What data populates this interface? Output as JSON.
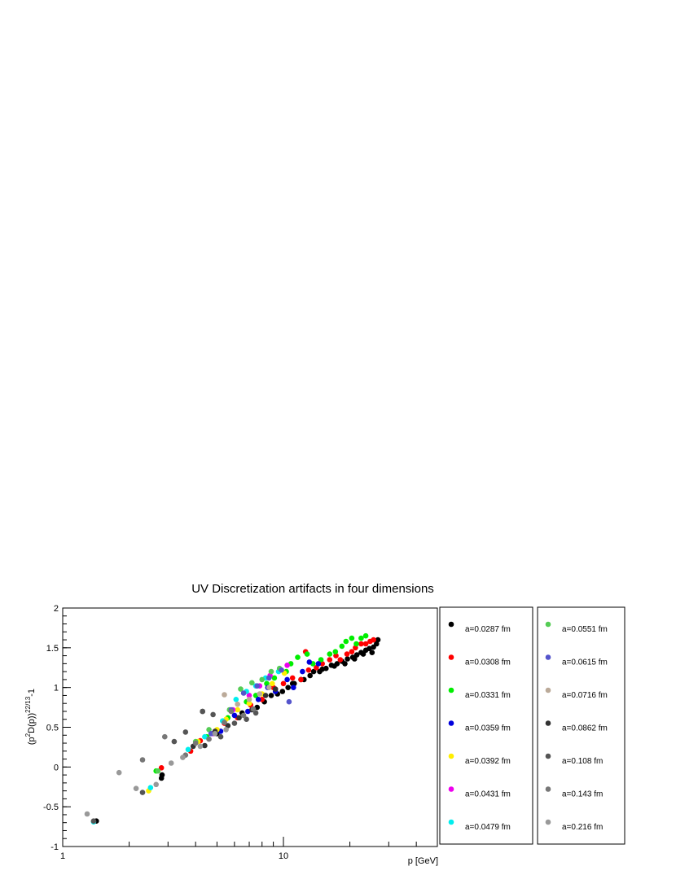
{
  "chart_data": {
    "type": "scatter",
    "title": "UV Discretization artifacts in four dimensions",
    "xlabel": "p [GeV]",
    "ylabel_parts": {
      "open": "(p",
      "sup1": "2",
      "mid": "D(p))",
      "sup2": "22/13",
      "tail": "-1"
    },
    "x_scale": "log",
    "xlim": [
      1,
      50
    ],
    "ylim": [
      -1,
      2
    ],
    "x_tick_labels": [
      "1",
      "10"
    ],
    "y_tick_labels": [
      "-1",
      "-0.5",
      "0",
      "0.5",
      "1",
      "1.5",
      "2"
    ],
    "grid": false,
    "legend_placement": "right",
    "series": [
      {
        "name": "a=0.0287 fm",
        "color": "#000000",
        "points": [
          [
            1.42,
            -0.68
          ],
          [
            2.82,
            -0.1
          ],
          [
            2.8,
            -0.14
          ],
          [
            5.0,
            0.42
          ],
          [
            6.5,
            0.68
          ],
          [
            7.6,
            0.75
          ],
          [
            8.2,
            0.82
          ],
          [
            8.8,
            0.9
          ],
          [
            9.4,
            0.92
          ],
          [
            10.5,
            1.0
          ],
          [
            11.2,
            1.05
          ],
          [
            12.4,
            1.1
          ],
          [
            13.2,
            1.15
          ],
          [
            14.6,
            1.2
          ],
          [
            15.6,
            1.24
          ],
          [
            16.5,
            1.28
          ],
          [
            17.5,
            1.3
          ],
          [
            18.4,
            1.33
          ],
          [
            19.5,
            1.36
          ],
          [
            20.6,
            1.38
          ],
          [
            21.5,
            1.41
          ],
          [
            22.5,
            1.44
          ],
          [
            23.6,
            1.47
          ],
          [
            24.5,
            1.49
          ],
          [
            25.6,
            1.51
          ],
          [
            26.4,
            1.55
          ],
          [
            26.8,
            1.6
          ],
          [
            25.2,
            1.44
          ],
          [
            23.0,
            1.42
          ],
          [
            21.0,
            1.36
          ],
          [
            19.0,
            1.3
          ],
          [
            17.0,
            1.27
          ],
          [
            15.0,
            1.23
          ],
          [
            13.7,
            1.2
          ],
          [
            12.0,
            1.1
          ],
          [
            11.0,
            1.05
          ],
          [
            9.9,
            0.95
          ]
        ]
      },
      {
        "name": "a=0.0308 fm",
        "color": "#ff0000",
        "points": [
          [
            2.8,
            -0.01
          ],
          [
            3.8,
            0.2
          ],
          [
            4.2,
            0.33
          ],
          [
            5.4,
            0.55
          ],
          [
            6.2,
            0.62
          ],
          [
            7.1,
            0.78
          ],
          [
            8.0,
            0.85
          ],
          [
            9.0,
            1.0
          ],
          [
            10.0,
            1.05
          ],
          [
            11.0,
            1.12
          ],
          [
            12.0,
            1.1
          ],
          [
            12.6,
            1.45
          ],
          [
            13.0,
            1.22
          ],
          [
            14.1,
            1.25
          ],
          [
            15.0,
            1.3
          ],
          [
            16.2,
            1.35
          ],
          [
            17.3,
            1.4
          ],
          [
            18.1,
            1.35
          ],
          [
            19.4,
            1.42
          ],
          [
            20.4,
            1.45
          ],
          [
            21.2,
            1.5
          ],
          [
            22.5,
            1.55
          ],
          [
            23.6,
            1.55
          ],
          [
            24.7,
            1.58
          ],
          [
            25.6,
            1.6
          ]
        ]
      },
      {
        "name": "a=0.0331 fm",
        "color": "#00ee00",
        "points": [
          [
            2.65,
            -0.05
          ],
          [
            4.5,
            0.38
          ],
          [
            5.6,
            0.62
          ],
          [
            6.8,
            0.82
          ],
          [
            7.5,
            0.9
          ],
          [
            8.4,
            1.05
          ],
          [
            9.1,
            1.12
          ],
          [
            10.3,
            1.2
          ],
          [
            10.8,
            1.3
          ],
          [
            11.6,
            1.38
          ],
          [
            12.8,
            1.42
          ],
          [
            13.6,
            1.3
          ],
          [
            14.8,
            1.35
          ],
          [
            16.2,
            1.42
          ],
          [
            17.2,
            1.45
          ],
          [
            18.4,
            1.52
          ],
          [
            19.2,
            1.58
          ],
          [
            20.4,
            1.62
          ],
          [
            21.4,
            1.55
          ],
          [
            22.5,
            1.62
          ],
          [
            23.6,
            1.65
          ]
        ]
      },
      {
        "name": "a=0.0359 fm",
        "color": "#0000dd",
        "points": [
          [
            5.2,
            0.45
          ],
          [
            6.0,
            0.65
          ],
          [
            6.9,
            0.7
          ],
          [
            7.7,
            0.85
          ],
          [
            8.5,
            1.0
          ],
          [
            9.2,
            0.95
          ],
          [
            10.4,
            1.1
          ],
          [
            11.1,
            1.0
          ],
          [
            12.2,
            1.2
          ],
          [
            13.1,
            1.32
          ],
          [
            14.4,
            1.3
          ]
        ]
      },
      {
        "name": "a=0.0392 fm",
        "color": "#ffee00",
        "points": [
          [
            2.45,
            -0.3
          ],
          [
            4.1,
            0.32
          ],
          [
            5.0,
            0.47
          ],
          [
            5.5,
            0.6
          ],
          [
            6.2,
            0.72
          ],
          [
            7.0,
            0.8
          ],
          [
            8.0,
            0.92
          ],
          [
            8.9,
            1.05
          ],
          [
            10.1,
            1.18
          ]
        ]
      },
      {
        "name": "a=0.0431 fm",
        "color": "#ee00ee",
        "points": [
          [
            4.8,
            0.42
          ],
          [
            5.9,
            0.72
          ],
          [
            7.0,
            0.9
          ],
          [
            7.8,
            1.02
          ],
          [
            8.7,
            1.15
          ],
          [
            9.6,
            1.22
          ],
          [
            10.4,
            1.28
          ]
        ]
      },
      {
        "name": "a=0.0479 fm",
        "color": "#00eeee",
        "points": [
          [
            1.38,
            -0.69
          ],
          [
            2.5,
            -0.26
          ],
          [
            3.7,
            0.22
          ],
          [
            4.4,
            0.38
          ],
          [
            5.3,
            0.58
          ],
          [
            6.1,
            0.85
          ],
          [
            6.8,
            0.95
          ],
          [
            7.5,
            1.02
          ],
          [
            8.3,
            1.12
          ],
          [
            9.5,
            1.2
          ]
        ]
      },
      {
        "name": "a=0.0551 fm",
        "color": "#55cc55",
        "points": [
          [
            2.7,
            -0.05
          ],
          [
            4.0,
            0.32
          ],
          [
            4.6,
            0.47
          ],
          [
            5.7,
            0.72
          ],
          [
            6.4,
            0.98
          ],
          [
            7.2,
            1.06
          ],
          [
            8.0,
            1.1
          ],
          [
            8.8,
            1.2
          ],
          [
            9.6,
            1.24
          ]
        ]
      },
      {
        "name": "a=0.0615 fm",
        "color": "#5555cc",
        "points": [
          [
            4.7,
            0.42
          ],
          [
            5.8,
            0.72
          ],
          [
            6.6,
            0.93
          ],
          [
            7.6,
            1.02
          ],
          [
            8.6,
            1.12
          ],
          [
            9.8,
            1.22
          ],
          [
            10.6,
            0.82
          ]
        ]
      },
      {
        "name": "a=0.0716 fm",
        "color": "#bbaa99",
        "points": [
          [
            5.4,
            0.91
          ],
          [
            6.2,
            0.79
          ],
          [
            7.0,
            0.85
          ],
          [
            7.8,
            0.92
          ],
          [
            8.6,
            1.0
          ]
        ]
      },
      {
        "name": "a=0.0862 fm",
        "color": "#333333",
        "points": [
          [
            3.9,
            0.26
          ],
          [
            4.4,
            0.27
          ],
          [
            4.9,
            0.45
          ],
          [
            5.6,
            0.52
          ],
          [
            6.3,
            0.62
          ],
          [
            7.2,
            0.72
          ],
          [
            8.3,
            0.9
          ],
          [
            9.2,
            0.98
          ],
          [
            4.3,
            0.7
          ]
        ]
      },
      {
        "name": "a=0.108 fm",
        "color": "#555555",
        "points": [
          [
            1.38,
            -0.68
          ],
          [
            2.3,
            -0.32
          ],
          [
            3.2,
            0.32
          ],
          [
            3.6,
            0.44
          ],
          [
            4.3,
            0.7
          ],
          [
            4.8,
            0.66
          ],
          [
            5.2,
            0.38
          ],
          [
            6.0,
            0.55
          ],
          [
            6.8,
            0.6
          ],
          [
            7.5,
            0.68
          ]
        ]
      },
      {
        "name": "a=0.143 fm",
        "color": "#777777",
        "points": [
          [
            2.3,
            0.09
          ],
          [
            2.9,
            0.38
          ],
          [
            3.6,
            0.15
          ],
          [
            4.0,
            0.3
          ],
          [
            4.6,
            0.35
          ],
          [
            5.4,
            0.56
          ],
          [
            5.8,
            0.7
          ],
          [
            6.6,
            0.65
          ],
          [
            7.3,
            0.73
          ]
        ]
      },
      {
        "name": "a=0.216 fm",
        "color": "#999999",
        "points": [
          [
            1.29,
            -0.59
          ],
          [
            1.8,
            -0.07
          ],
          [
            2.15,
            -0.27
          ],
          [
            2.65,
            -0.22
          ],
          [
            3.1,
            0.05
          ],
          [
            3.5,
            0.12
          ],
          [
            4.2,
            0.26
          ],
          [
            4.9,
            0.42
          ],
          [
            5.5,
            0.47
          ]
        ]
      }
    ]
  }
}
